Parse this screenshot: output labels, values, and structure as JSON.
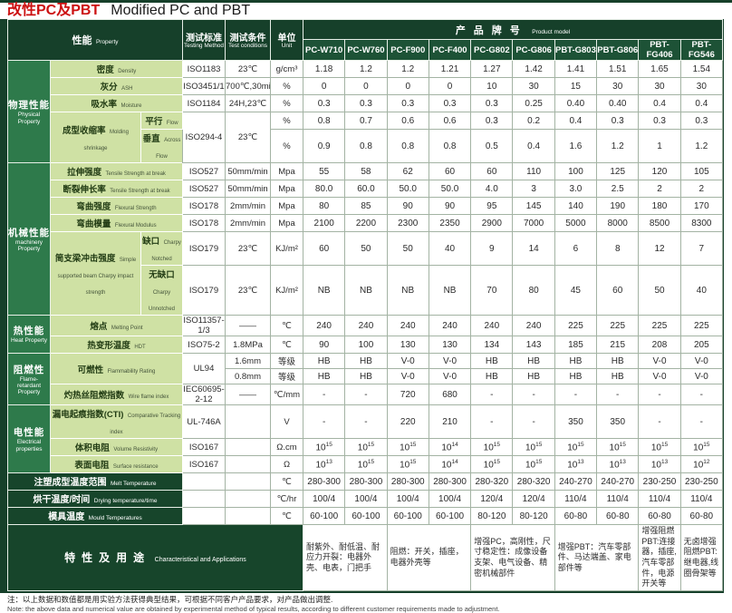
{
  "title": {
    "zh": "改性PC及PBT",
    "en": "Modified PC and PBT"
  },
  "colors": {
    "accent_red": "#c11111",
    "header_green": "#16402a",
    "category_green": "#2e7a4b",
    "light_green": "#cfe1a4",
    "product_row_green": "#1d5236"
  },
  "header": {
    "property": {
      "zh": "性能",
      "en": "Property"
    },
    "testing_method": {
      "zh": "测试标准",
      "en": "Testing Method"
    },
    "test_conditions": {
      "zh": "测试条件",
      "en": "Test conditions"
    },
    "unit": {
      "zh": "单位",
      "en": "Unit"
    },
    "product_model": {
      "zh": "产品牌号",
      "en": "Product model"
    },
    "products": [
      "PC-W710",
      "PC-W760",
      "PC-F900",
      "PC-F400",
      "PC-G802",
      "PC-G806",
      "PBT-G803",
      "PBT-G806",
      "PBT-FG406",
      "PBT-FG546"
    ]
  },
  "sections": [
    {
      "category": {
        "zh": "物理性能",
        "en": "Physical Property"
      },
      "rows": [
        {
          "name": {
            "zh": "密度",
            "en": "Density"
          },
          "method": "ISO1183",
          "condition": "23℃",
          "unit": "g/cm³",
          "values": [
            "1.18",
            "1.2",
            "1.2",
            "1.21",
            "1.27",
            "1.42",
            "1.41",
            "1.51",
            "1.65",
            "1.54"
          ]
        },
        {
          "name": {
            "zh": "灰分",
            "en": "ASH"
          },
          "method": "ISO3451/1",
          "condition": "700℃,30min",
          "unit": "%",
          "values": [
            "0",
            "0",
            "0",
            "0",
            "10",
            "30",
            "15",
            "30",
            "30",
            "30"
          ]
        },
        {
          "name": {
            "zh": "吸水率",
            "en": "Moisture"
          },
          "method": "ISO1184",
          "condition": "24H,23℃",
          "unit": "%",
          "values": [
            "0.3",
            "0.3",
            "0.3",
            "0.3",
            "0.3",
            "0.25",
            "0.40",
            "0.40",
            "0.4",
            "0.4"
          ]
        },
        {
          "name": {
            "zh": "成型收缩率",
            "en": "Molding shrinkage"
          },
          "name_rowspan": 2,
          "sub": {
            "zh": "平行",
            "en": "Flow"
          },
          "method": "ISO294-4",
          "method_rowspan": 2,
          "condition": "23℃",
          "condition_rowspan": 2,
          "unit": "%",
          "values": [
            "0.8",
            "0.7",
            "0.6",
            "0.6",
            "0.3",
            "0.2",
            "0.4",
            "0.3",
            "0.3",
            "0.3"
          ]
        },
        {
          "sub": {
            "zh": "垂直",
            "en": "Across Flow"
          },
          "unit": "%",
          "values": [
            "0.9",
            "0.8",
            "0.8",
            "0.8",
            "0.5",
            "0.4",
            "1.6",
            "1.2",
            "1",
            "1.2"
          ]
        }
      ]
    },
    {
      "category": {
        "zh": "机械性能",
        "en": "machinery Property"
      },
      "rows": [
        {
          "name": {
            "zh": "拉伸强度",
            "en": "Tensile Strength at break"
          },
          "method": "ISO527",
          "condition": "50mm/min",
          "unit": "Mpa",
          "values": [
            "55",
            "58",
            "62",
            "60",
            "60",
            "110",
            "100",
            "125",
            "120",
            "105"
          ]
        },
        {
          "name": {
            "zh": "断裂伸长率",
            "en": "Tensile Strength at break"
          },
          "method": "ISO527",
          "condition": "50mm/min",
          "unit": "Mpa",
          "values": [
            "80.0",
            "60.0",
            "50.0",
            "50.0",
            "4.0",
            "3",
            "3.0",
            "2.5",
            "2",
            "2"
          ]
        },
        {
          "name": {
            "zh": "弯曲强度",
            "en": "Flexural Strength"
          },
          "method": "ISO178",
          "condition": "2mm/min",
          "unit": "Mpa",
          "values": [
            "80",
            "85",
            "90",
            "90",
            "95",
            "145",
            "140",
            "190",
            "180",
            "170"
          ]
        },
        {
          "name": {
            "zh": "弯曲模量",
            "en": "Flexural Modulus"
          },
          "method": "ISO178",
          "condition": "2mm/min",
          "unit": "Mpa",
          "values": [
            "2100",
            "2200",
            "2300",
            "2350",
            "2900",
            "7000",
            "5000",
            "8000",
            "8500",
            "8300"
          ]
        },
        {
          "name": {
            "zh": "简支梁冲击强度",
            "en": "Simple supported beam Charpy impact strength"
          },
          "name_rowspan": 2,
          "sub": {
            "zh": "缺口",
            "en": "Charpy Notched"
          },
          "method": "ISO179",
          "condition": "23℃",
          "unit": "KJ/m²",
          "values": [
            "60",
            "50",
            "50",
            "40",
            "9",
            "14",
            "6",
            "8",
            "12",
            "7"
          ]
        },
        {
          "sub": {
            "zh": "无缺口",
            "en": "Charpy Unnotched"
          },
          "method": "ISO179",
          "condition": "23℃",
          "unit": "KJ/m²",
          "values": [
            "NB",
            "NB",
            "NB",
            "NB",
            "70",
            "80",
            "45",
            "60",
            "50",
            "40"
          ]
        }
      ]
    },
    {
      "category": {
        "zh": "热性能",
        "en": "Heat Property"
      },
      "rows": [
        {
          "name": {
            "zh": "熔点",
            "en": "Melting Point"
          },
          "method": "ISO11357-1/3",
          "condition": "——",
          "unit": "℃",
          "values": [
            "240",
            "240",
            "240",
            "240",
            "240",
            "240",
            "225",
            "225",
            "225",
            "225"
          ]
        },
        {
          "name": {
            "zh": "热变形温度",
            "en": "HDT"
          },
          "method": "ISO75-2",
          "condition": "1.8MPa",
          "unit": "℃",
          "values": [
            "90",
            "100",
            "130",
            "130",
            "134",
            "143",
            "185",
            "215",
            "208",
            "205"
          ]
        }
      ]
    },
    {
      "category": {
        "zh": "阻燃性",
        "en": "Flame-retardant Property"
      },
      "rows": [
        {
          "name": {
            "zh": "可燃性",
            "en": "Flammability Rating"
          },
          "name_rowspan": 2,
          "method": "UL94",
          "method_rowspan": 2,
          "condition": "1.6mm",
          "unit": "等级",
          "values": [
            "HB",
            "HB",
            "V-0",
            "V-0",
            "HB",
            "HB",
            "HB",
            "HB",
            "V-0",
            "V-0"
          ]
        },
        {
          "condition": "0.8mm",
          "unit": "等级",
          "values": [
            "HB",
            "HB",
            "V-0",
            "V-0",
            "HB",
            "HB",
            "HB",
            "HB",
            "V-0",
            "V-0"
          ]
        },
        {
          "name": {
            "zh": "灼热丝阻燃指数",
            "en": "Wire flame index"
          },
          "method": "IEC60695-2-12",
          "condition": "——",
          "unit": "℃/mm",
          "values": [
            "-",
            "-",
            "720",
            "680",
            "-",
            "-",
            "-",
            "-",
            "-",
            "-"
          ]
        }
      ]
    },
    {
      "category": {
        "zh": "电性能",
        "en": "Electrical properties"
      },
      "rows": [
        {
          "name": {
            "zh": "漏电起痕指数(CTI)",
            "en": "Comparative Tracking index"
          },
          "method": "UL-746A",
          "condition": "",
          "unit": "V",
          "values": [
            "-",
            "-",
            "220",
            "210",
            "-",
            "-",
            "350",
            "350",
            "-",
            "-"
          ]
        },
        {
          "name": {
            "zh": "体积电阻",
            "en": "Volume Resistivity"
          },
          "method": "ISO167",
          "condition": "",
          "unit": "Ω.cm",
          "values": [
            "10^15",
            "10^15",
            "10^15",
            "10^14",
            "10^15",
            "10^15",
            "10^15",
            "10^15",
            "10^15",
            "10^15"
          ]
        },
        {
          "name": {
            "zh": "表面电阻",
            "en": "Surface resistance"
          },
          "method": "ISO167",
          "condition": "",
          "unit": "Ω",
          "values": [
            "10^13",
            "10^15",
            "10^15",
            "10^14",
            "10^15",
            "10^15",
            "10^13",
            "10^13",
            "10^13",
            "10^12"
          ]
        }
      ]
    }
  ],
  "footer_rows": [
    {
      "label": {
        "zh": "注塑成型温度范围",
        "en": "Melt Temperature"
      },
      "unit": "℃",
      "values": [
        "280-300",
        "280-300",
        "280-300",
        "280-300",
        "280-320",
        "280-320",
        "240-270",
        "240-270",
        "230-250",
        "230-250"
      ]
    },
    {
      "label": {
        "zh": "烘干温度/时间",
        "en": "Drying temperature/time"
      },
      "unit": "℃/hr",
      "values": [
        "100/4",
        "100/4",
        "100/4",
        "100/4",
        "120/4",
        "120/4",
        "110/4",
        "110/4",
        "110/4",
        "110/4"
      ]
    },
    {
      "label": {
        "zh": "模具温度",
        "en": "Mould Temperatures"
      },
      "unit": "℃",
      "values": [
        "60-100",
        "60-100",
        "60-100",
        "60-100",
        "80-120",
        "80-120",
        "60-80",
        "60-80",
        "60-80",
        "60-80"
      ]
    }
  ],
  "applications": {
    "label": {
      "zh": "特性及用途",
      "en": "Characteristical and Applications"
    },
    "cells": [
      {
        "span": 2,
        "text": "耐紫外、耐低温、耐应力开裂：电器外壳、电表，门把手"
      },
      {
        "span": 2,
        "text": "阻燃：开关，插座，电器外壳等"
      },
      {
        "span": 2,
        "text": "增强PC，高刚性，尺寸稳定性：成像设备支架、电气设备、精密机械部件"
      },
      {
        "span": 2,
        "text": "增强PBT：汽车零部件、马达端盖、家电部件等"
      },
      {
        "span": 1,
        "text": "增强阻燃PBT:连接器，插座,汽车零部件，电源开关等"
      },
      {
        "span": 1,
        "text": "无卤增强阻燃PBT:继电器,线圈骨架等"
      }
    ]
  },
  "note": {
    "zh": "注：以上数据和数值都是用实验方法获得典型结果，可根据不同客户产品要求，对产品做出调整.",
    "en": "Note: the above data and numerical value are obtained by experimental method of typical results, according to different customer requirements made to adjustment."
  }
}
